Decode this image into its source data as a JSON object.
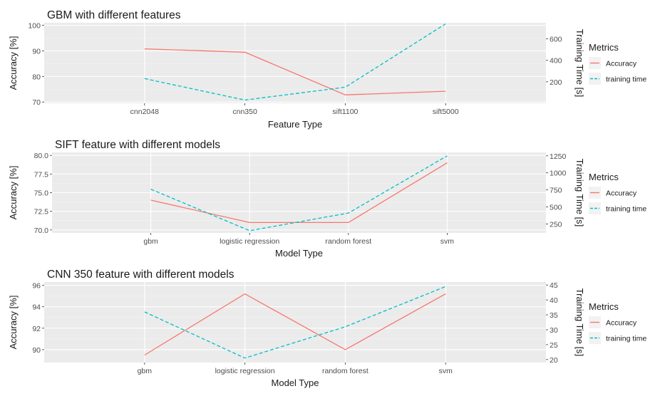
{
  "colors": {
    "panel": "#ebebeb",
    "grid_major": "#ffffff",
    "grid_minor": "#f3f3f3",
    "accuracy": "#f8766d",
    "training": "#00bfc4",
    "tick_text": "#4d4d4d",
    "text": "#1a1a1a"
  },
  "legend": {
    "title": "Metrics",
    "items": [
      "Accuracy",
      "training time"
    ]
  },
  "chart_data": [
    {
      "type": "line",
      "title": "GBM with different features",
      "xlabel": "Feature Type",
      "ylabel": "Accuracy [%]",
      "y2label": "Training Time [s]",
      "categories": [
        "cnn2048",
        "cnn350",
        "sift1100",
        "sift5000"
      ],
      "ylim": [
        69.5,
        101
      ],
      "yticks": [
        70,
        80,
        90,
        100
      ],
      "ylim2": [
        0,
        750
      ],
      "yticks2": [
        200,
        400,
        600
      ],
      "grid": true,
      "legend_position": "right",
      "series": [
        {
          "name": "Accuracy",
          "axis": "left",
          "dash": false,
          "values": [
            90.8,
            89.5,
            72.8,
            74.2
          ]
        },
        {
          "name": "training time",
          "axis": "right",
          "dash": true,
          "values": [
            230,
            30,
            150,
            740
          ]
        }
      ]
    },
    {
      "type": "line",
      "title": "SIFT feature with different models",
      "xlabel": "Model Type",
      "ylabel": "Accuracy [%]",
      "y2label": "Training Time [s]",
      "categories": [
        "gbm",
        "logistic regression",
        "random forest",
        "svm"
      ],
      "ylim": [
        69.6,
        80.4
      ],
      "yticks": [
        70.0,
        72.5,
        75.0,
        77.5,
        80.0
      ],
      "ylim2": [
        118,
        1300
      ],
      "yticks2": [
        250,
        500,
        750,
        1000,
        1250
      ],
      "grid": true,
      "legend_position": "right",
      "series": [
        {
          "name": "Accuracy",
          "axis": "left",
          "dash": false,
          "values": [
            74.0,
            71.0,
            71.0,
            79.0
          ]
        },
        {
          "name": "training time",
          "axis": "right",
          "dash": true,
          "values": [
            760,
            150,
            410,
            1250
          ]
        }
      ]
    },
    {
      "type": "line",
      "title": "CNN 350 feature with different models",
      "xlabel": "Model Type",
      "ylabel": "Accuracy [%]",
      "y2label": "Training Time [s]",
      "categories": [
        "gbm",
        "logistic regression",
        "random forest",
        "svm"
      ],
      "ylim": [
        88.8,
        96.3
      ],
      "yticks": [
        90,
        92,
        94,
        96
      ],
      "ylim2": [
        19,
        46
      ],
      "yticks2": [
        20,
        25,
        30,
        35,
        40,
        45
      ],
      "grid": true,
      "legend_position": "right",
      "series": [
        {
          "name": "Accuracy",
          "axis": "left",
          "dash": false,
          "values": [
            89.5,
            95.2,
            90.0,
            95.2
          ]
        },
        {
          "name": "training time",
          "axis": "right",
          "dash": true,
          "values": [
            36,
            20.5,
            31,
            44.5
          ]
        }
      ]
    }
  ]
}
